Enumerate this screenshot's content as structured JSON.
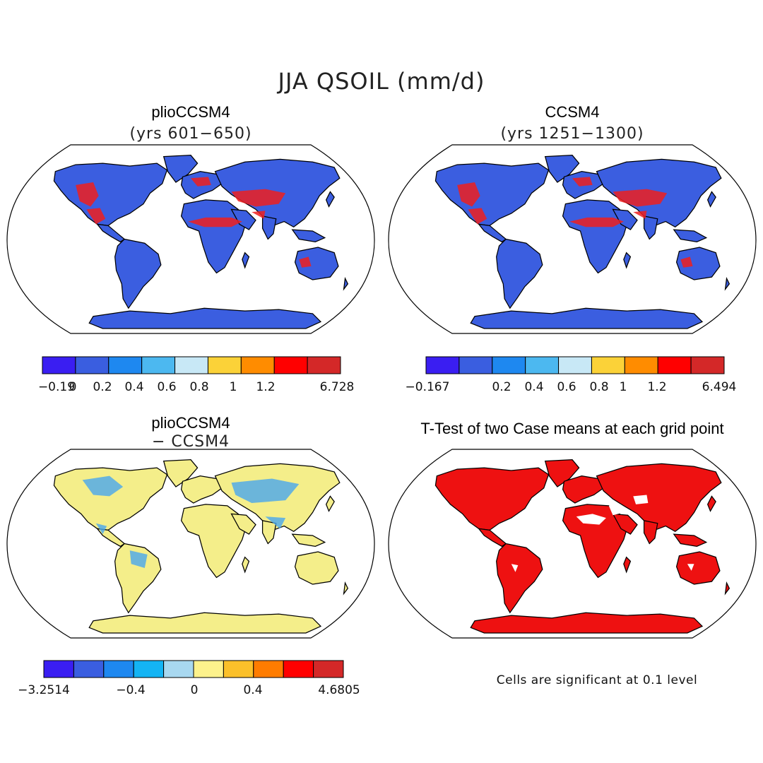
{
  "title": "JJA QSOIL (mm/d)",
  "panels": [
    {
      "id": "plio",
      "title": "plioCCSM4",
      "subtitle": "(yrs 601−650)",
      "fill": "#3b5ee0",
      "antarctica_fill": "#3a1ef2"
    },
    {
      "id": "ccsm4",
      "title": "CCSM4",
      "subtitle": "(yrs 1251−1300)",
      "fill": "#3b5ee0",
      "antarctica_fill": "#3a1ef2"
    },
    {
      "id": "diff",
      "title": "plioCCSM4",
      "subtitle": "− CCSM4",
      "fill": "#f4ee8a",
      "antarctica_fill": "#f4ee8a"
    },
    {
      "id": "ttest",
      "title": "T-Test of two Case means at each grid point",
      "subtitle": "",
      "fill": "#ee1111",
      "antarctica_fill": "#ee1111"
    }
  ],
  "chart_data": [
    {
      "type": "heatmap",
      "name": "plioCCSM4 (yrs 601-650)",
      "colorbar": {
        "colors": [
          "#3a1ef2",
          "#3a5ee0",
          "#1e88f0",
          "#4cb8f0",
          "#c8e8f6",
          "#fbd238",
          "#ff8c00",
          "#ff0000",
          "#d42828"
        ],
        "tick_labels": [
          "−0.19",
          "0",
          "0.2",
          "0.4",
          "0.6",
          "0.8",
          "1",
          "1.2",
          "6.728"
        ]
      }
    },
    {
      "type": "heatmap",
      "name": "CCSM4 (yrs 1251-1300)",
      "colorbar": {
        "colors": [
          "#3a1ef2",
          "#3a5ee0",
          "#1e88f0",
          "#4cb8f0",
          "#c8e8f6",
          "#fbd238",
          "#ff8c00",
          "#ff0000",
          "#d42828"
        ],
        "tick_labels": [
          "−0.167",
          "0.2",
          "0.4",
          "0.6",
          "0.8",
          "1",
          "1.2",
          "6.494"
        ]
      }
    },
    {
      "type": "heatmap",
      "name": "plioCCSM4 − CCSM4",
      "colorbar": {
        "colors": [
          "#3a1ef2",
          "#3a5ee0",
          "#1e88f0",
          "#14b4f4",
          "#a8d8f0",
          "#fdf28c",
          "#fbc02a",
          "#ff7c00",
          "#ff0000",
          "#d42828"
        ],
        "tick_labels": [
          "−3.2514",
          "−0.4",
          "0",
          "0.4",
          "4.6805"
        ]
      }
    },
    {
      "type": "heatmap",
      "name": "T-Test of two Case means at each grid point",
      "note": "Cells are significant at 0.1 level"
    }
  ]
}
